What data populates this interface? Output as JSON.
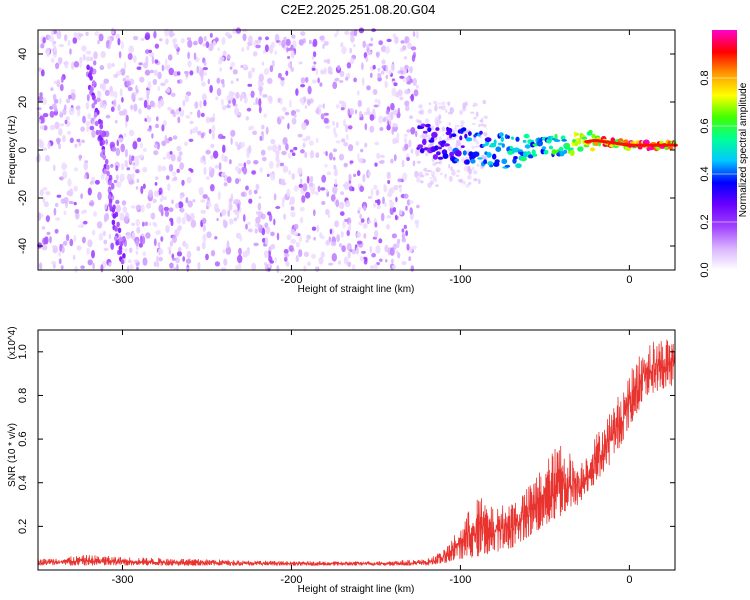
{
  "title": "C2E2.2025.251.08.20.G04",
  "chart_data": [
    {
      "type": "heatmap",
      "xlabel": "Height of straight line (km)",
      "ylabel": "Frequency (Hz)",
      "xlim": [
        -350,
        27
      ],
      "ylim": [
        -50,
        50
      ],
      "xticks": [
        -300,
        -200,
        -100,
        0
      ],
      "xtick_labels": [
        "-300",
        "-200",
        "-100",
        "0"
      ],
      "yticks": [
        -40,
        -20,
        0,
        20,
        40
      ],
      "ytick_labels": [
        "-40",
        "-20",
        "0",
        "20",
        "40"
      ],
      "colorbar": {
        "label": "Normalized spectral amplitude",
        "range": [
          0,
          1
        ],
        "ticks": [
          0.0,
          0.2,
          0.4,
          0.6,
          0.8
        ],
        "tick_labels": [
          "0.0",
          "0.2",
          "0.4",
          "0.6",
          "0.8"
        ],
        "colormap": [
          "#ffffff",
          "#d9b3ff",
          "#a040ff",
          "#6a00ff",
          "#0000ff",
          "#00c8ff",
          "#00ff99",
          "#40ff00",
          "#ffff00",
          "#ff9900",
          "#ff0000",
          "#ff00cc"
        ]
      },
      "features": {
        "noise_region_x": [
          -350,
          -125
        ],
        "noise_density": 0.3,
        "tracked_signal": {
          "x": [
            -125,
            -110,
            -100,
            -90,
            -80,
            -70,
            -60,
            -50,
            -40,
            -30,
            -20,
            -10,
            0,
            10,
            27
          ],
          "y": [
            6,
            3,
            2,
            1,
            0,
            -1,
            1,
            2,
            2,
            3,
            4,
            3,
            2,
            2,
            2
          ],
          "amplitude": [
            0.3,
            0.35,
            0.4,
            0.45,
            0.45,
            0.5,
            0.55,
            0.55,
            0.6,
            0.7,
            0.85,
            0.9,
            0.92,
            0.95,
            0.95
          ]
        },
        "diagonal_streak": {
          "x_start": -320,
          "y_start": 35,
          "x_end": -300,
          "y_end": -47,
          "amplitude": 0.2
        }
      }
    },
    {
      "type": "line",
      "xlabel": "Height of straight line (km)",
      "ylabel": "SNR (10 * v/v)",
      "y_multiplier": "(x10^4)",
      "xlim": [
        -350,
        27
      ],
      "ylim": [
        0,
        1.1
      ],
      "xticks": [
        -300,
        -200,
        -100,
        0
      ],
      "xtick_labels": [
        "-300",
        "-200",
        "-100",
        "0"
      ],
      "yticks": [
        0.2,
        0.4,
        0.6,
        0.8,
        1.0
      ],
      "ytick_labels": [
        "0.2",
        "0.4",
        "0.6",
        "0.8",
        "1.0"
      ],
      "series": [
        {
          "name": "SNR",
          "color": "#e8332f",
          "envelope_x": [
            -350,
            -320,
            -300,
            -200,
            -150,
            -120,
            -110,
            -100,
            -90,
            -80,
            -70,
            -60,
            -50,
            -40,
            -30,
            -20,
            -10,
            0,
            10,
            27
          ],
          "envelope_low": [
            0.02,
            0.02,
            0.02,
            0.02,
            0.02,
            0.02,
            0.03,
            0.05,
            0.06,
            0.08,
            0.1,
            0.15,
            0.2,
            0.25,
            0.3,
            0.4,
            0.5,
            0.65,
            0.8,
            0.85
          ],
          "envelope_high": [
            0.05,
            0.07,
            0.06,
            0.04,
            0.04,
            0.05,
            0.09,
            0.2,
            0.35,
            0.28,
            0.32,
            0.38,
            0.5,
            0.6,
            0.48,
            0.62,
            0.75,
            0.9,
            1.05,
            1.08
          ]
        }
      ]
    }
  ]
}
